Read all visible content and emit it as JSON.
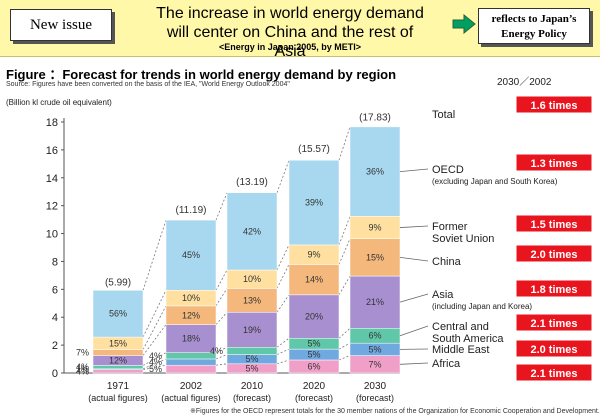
{
  "header": {
    "badge": "New issue",
    "headline_line1": "The increase in world energy demand",
    "headline_line2": "will center on China and the rest of Asia",
    "headline_sub": "<Energy in Japan 2005, by METI>",
    "reflects_line1": "reflects to Japan’s",
    "reflects_line2": "Energy Policy",
    "accent": "#00a060"
  },
  "figure": {
    "title": "Figure ：Forecast for trends in world energy demand by region",
    "source": "Source: Figures have been converted on the basis of the IEA, \"World Energy Outlook 2004\"",
    "y_unit": "(Billion kl crude oil equivalent)",
    "period": "2030／2002",
    "footnote": "※Figures for the OECD represent totals for the 30 member nations of the Organization for Economic Cooperation and Development."
  },
  "chart_data": {
    "type": "bar",
    "stacked": true,
    "categories": [
      "1971",
      "2002",
      "2010",
      "2020",
      "2030"
    ],
    "category_notes": [
      "(actual figures)",
      "(actual figures)",
      "(forecast)",
      "(forecast)",
      "(forecast)"
    ],
    "totals": [
      5.99,
      11.19,
      13.19,
      15.57,
      17.83
    ],
    "total_labels": [
      "(5.99)",
      "(11.19)",
      "(13.19)",
      "(15.57)",
      "(17.83)"
    ],
    "total_series_label": "Total",
    "ylim": [
      0,
      18
    ],
    "yticks": [
      0,
      2,
      4,
      6,
      8,
      10,
      12,
      14,
      16,
      18
    ],
    "series": [
      {
        "name": "Africa",
        "color": "#f0a0c8",
        "percents": [
          4,
          5,
          5,
          6,
          7
        ]
      },
      {
        "name": "Middle East",
        "color": "#70a8e0",
        "percents": [
          1,
          4,
          5,
          5,
          5
        ]
      },
      {
        "name": "Central and South America",
        "color": "#60c8a8",
        "percents": [
          4,
          4,
          4,
          5,
          6
        ]
      },
      {
        "name": "Asia",
        "color": "#a890d0",
        "percents": [
          12,
          18,
          19,
          20,
          21
        ]
      },
      {
        "name": "China",
        "color": "#f4b87c",
        "percents": [
          7,
          12,
          13,
          14,
          15
        ]
      },
      {
        "name": "Former Soviet Union",
        "color": "#ffe0a0",
        "percents": [
          15,
          10,
          10,
          9,
          9
        ]
      },
      {
        "name": "OECD",
        "color": "#a8d8f0",
        "percents": [
          56,
          45,
          42,
          39,
          36
        ]
      }
    ],
    "segment_labels": [
      [
        "4%",
        "1%",
        "4%",
        "12%",
        "7%",
        "15%",
        "56%"
      ],
      [
        "5%",
        "4%",
        "4%",
        "18%",
        "12%",
        "10%",
        "45%"
      ],
      [
        "5%",
        "5%",
        "4%",
        "19%",
        "13%",
        "10%",
        "42%"
      ],
      [
        "6%",
        "5%",
        "5%",
        "20%",
        "14%",
        "9%",
        "39%"
      ],
      [
        "7%",
        "5%",
        "6%",
        "21%",
        "15%",
        "9%",
        "36%"
      ]
    ],
    "region_labels": [
      {
        "lines": [
          "Total"
        ]
      },
      {
        "lines": [
          "OECD",
          "(excluding Japan and South Korea)"
        ]
      },
      {
        "lines": [
          "Former",
          "Soviet Union"
        ]
      },
      {
        "lines": [
          "China"
        ]
      },
      {
        "lines": [
          "Asia",
          "(including Japan and Korea)"
        ]
      },
      {
        "lines": [
          "Central and",
          "South America"
        ]
      },
      {
        "lines": [
          "Middle East"
        ]
      },
      {
        "lines": [
          "Africa"
        ]
      }
    ],
    "growth_ratios": [
      "1.6 times",
      "1.3 times",
      "1.5 times",
      "2.0 times",
      "1.8 times",
      "2.1 times",
      "2.0 times",
      "2.1 times"
    ],
    "growth_color": "#e8141e"
  }
}
